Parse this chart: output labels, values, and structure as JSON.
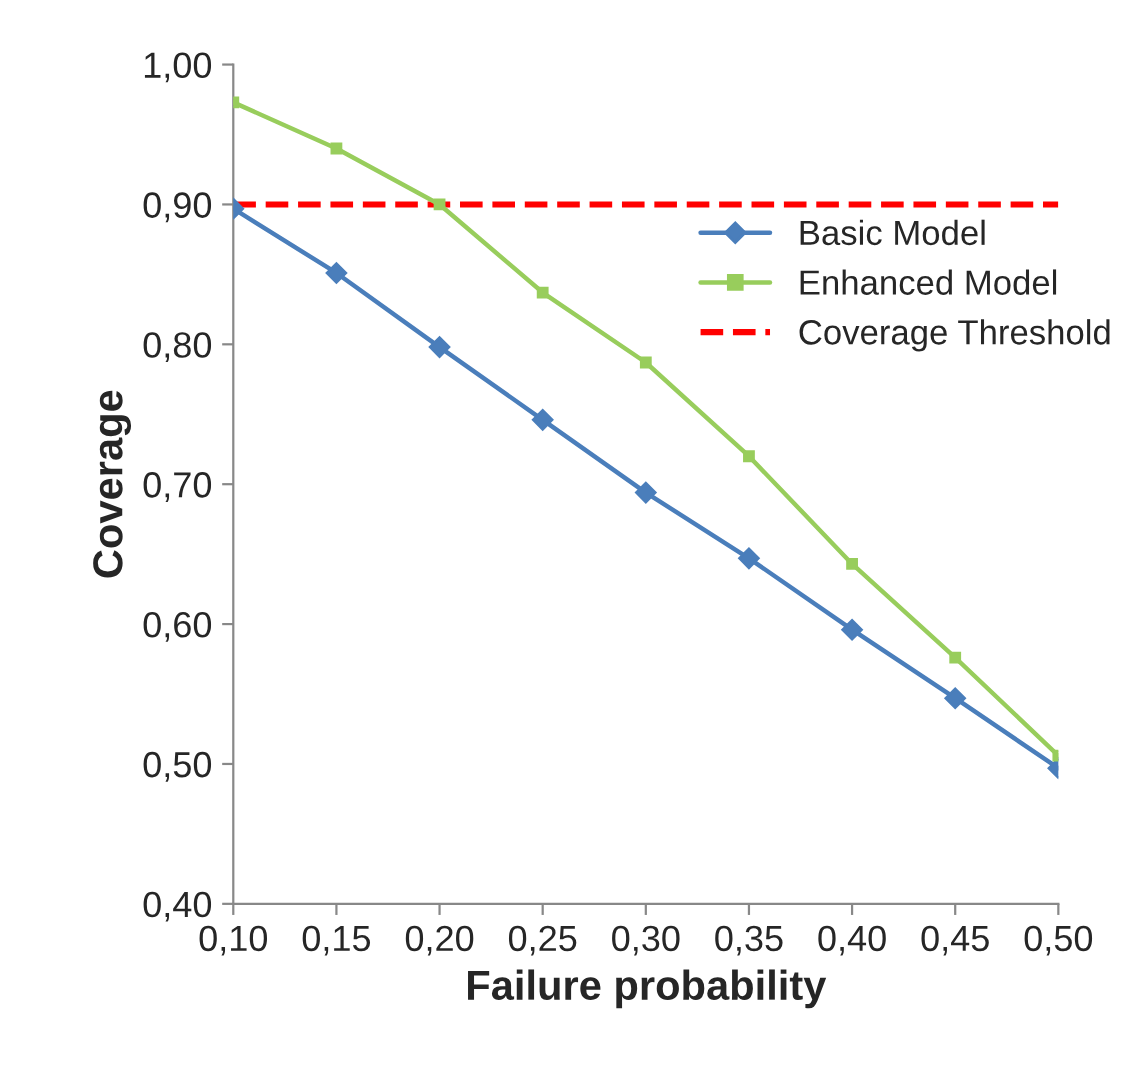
{
  "chart_data": {
    "type": "line",
    "xlabel": "Failure probability",
    "ylabel": "Coverage",
    "x": [
      0.1,
      0.15,
      0.2,
      0.25,
      0.3,
      0.35,
      0.4,
      0.45,
      0.5
    ],
    "series": [
      {
        "name": "Basic Model",
        "color": "#4a7ebb",
        "marker": "diamond",
        "values": [
          0.897,
          0.851,
          0.798,
          0.746,
          0.694,
          0.647,
          0.596,
          0.547,
          0.497
        ]
      },
      {
        "name": "Enhanced Model",
        "color": "#98cd5c",
        "marker": "square",
        "values": [
          0.973,
          0.94,
          0.9,
          0.837,
          0.787,
          0.72,
          0.643,
          0.576,
          0.506
        ]
      }
    ],
    "ref_lines": [
      {
        "axis": "y",
        "value": 0.9,
        "label": "Coverage Threshold",
        "color": "#ff0000",
        "line_style": "dashed"
      }
    ],
    "xlim": [
      0.1,
      0.5
    ],
    "ylim": [
      0.4,
      1.0
    ],
    "xticks": [
      {
        "value": 0.1,
        "label": "0,10"
      },
      {
        "value": 0.15,
        "label": "0,15"
      },
      {
        "value": 0.2,
        "label": "0,20"
      },
      {
        "value": 0.25,
        "label": "0,25"
      },
      {
        "value": 0.3,
        "label": "0,30"
      },
      {
        "value": 0.35,
        "label": "0,35"
      },
      {
        "value": 0.4,
        "label": "0,40"
      },
      {
        "value": 0.45,
        "label": "0,45"
      },
      {
        "value": 0.5,
        "label": "0,50"
      }
    ],
    "yticks": [
      {
        "value": 0.4,
        "label": "0,40"
      },
      {
        "value": 0.5,
        "label": "0,50"
      },
      {
        "value": 0.6,
        "label": "0,60"
      },
      {
        "value": 0.7,
        "label": "0,70"
      },
      {
        "value": 0.8,
        "label": "0,80"
      },
      {
        "value": 0.9,
        "label": "0,90"
      },
      {
        "value": 1.0,
        "label": "1,00"
      }
    ],
    "grid": false,
    "legend": "top right",
    "line_style": "solid"
  }
}
